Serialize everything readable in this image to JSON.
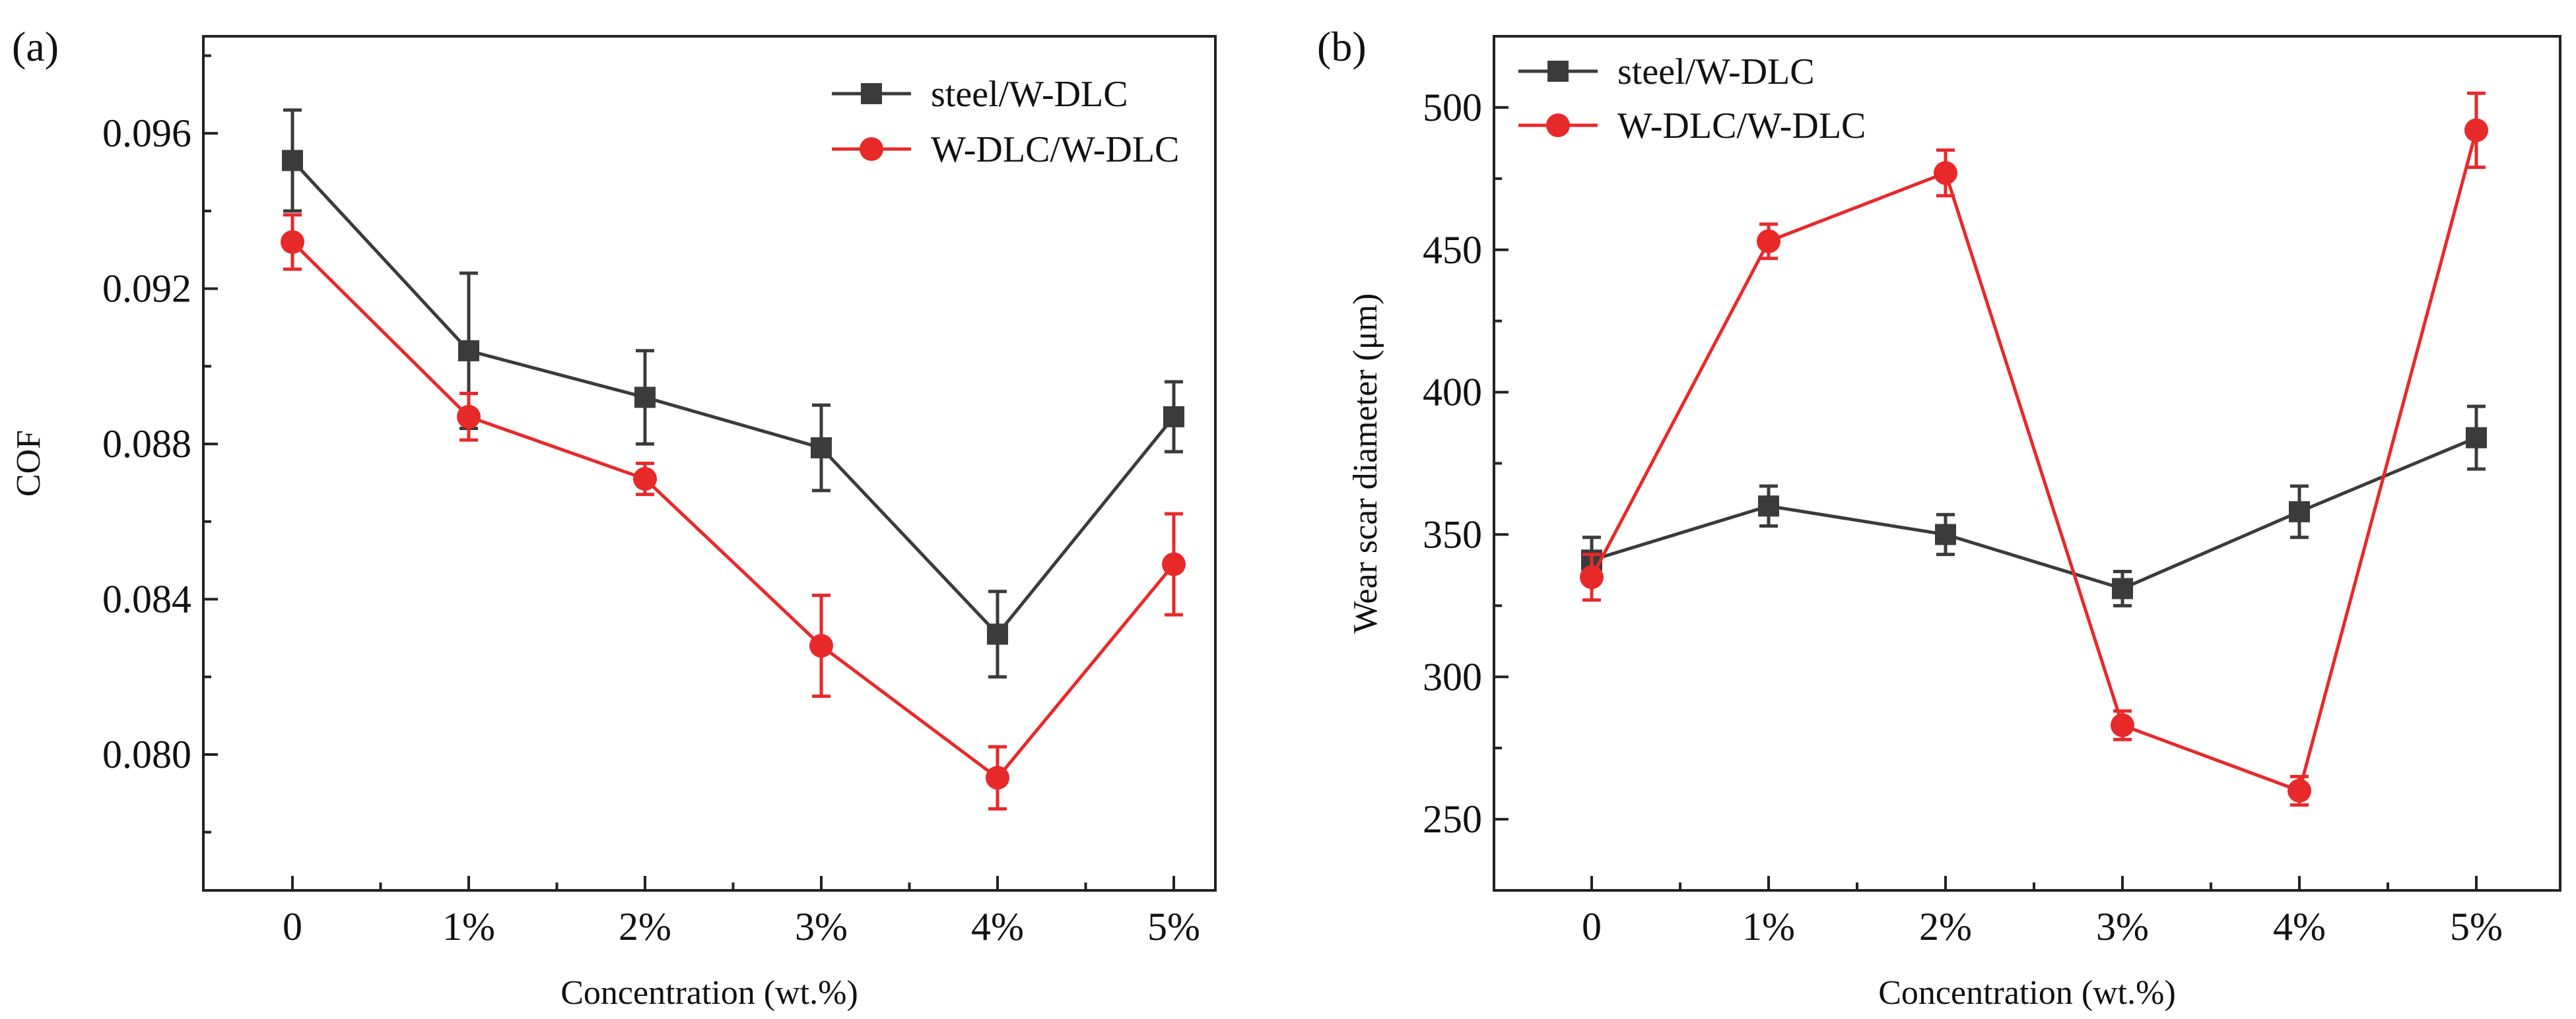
{
  "chart_data": [
    {
      "type": "line",
      "panel_label": "(a)",
      "xlabel": "Concentration (wt.%)",
      "ylabel": "COF",
      "categories": [
        "0",
        "1%",
        "2%",
        "3%",
        "4%",
        "5%"
      ],
      "ylim": [
        0.0765,
        0.0985
      ],
      "yticks": [
        0.08,
        0.084,
        0.088,
        0.092,
        0.096
      ],
      "ytick_labels": [
        "0.080",
        "0.084",
        "0.088",
        "0.092",
        "0.096"
      ],
      "legend_position": "top-right",
      "series": [
        {
          "name": "steel/W-DLC",
          "color": "#3b3b3b",
          "marker": "square",
          "values": [
            0.0953,
            0.0904,
            0.0892,
            0.0879,
            0.0831,
            0.0887
          ],
          "errors": [
            0.0013,
            0.002,
            0.0012,
            0.0011,
            0.0011,
            0.0009
          ]
        },
        {
          "name": "W-DLC/W-DLC",
          "color": "#e8292a",
          "marker": "circle",
          "values": [
            0.0932,
            0.0887,
            0.0871,
            0.0828,
            0.0794,
            0.0849
          ],
          "errors": [
            0.0007,
            0.0006,
            0.0004,
            0.0013,
            0.0008,
            0.0013
          ]
        }
      ]
    },
    {
      "type": "line",
      "panel_label": "(b)",
      "xlabel": "Concentration (wt.%)",
      "ylabel": "Wear scar diameter (μm)",
      "categories": [
        "0",
        "1%",
        "2%",
        "3%",
        "4%",
        "5%"
      ],
      "ylim": [
        225,
        525
      ],
      "yticks": [
        250,
        300,
        350,
        400,
        450,
        500
      ],
      "ytick_labels": [
        "250",
        "300",
        "350",
        "400",
        "450",
        "500"
      ],
      "legend_position": "top-left",
      "series": [
        {
          "name": "steel/W-DLC",
          "color": "#3b3b3b",
          "marker": "square",
          "values": [
            341,
            360,
            350,
            331,
            358,
            384
          ],
          "errors": [
            8,
            7,
            7,
            6,
            9,
            11
          ]
        },
        {
          "name": "W-DLC/W-DLC",
          "color": "#e8292a",
          "marker": "circle",
          "values": [
            335,
            453,
            477,
            283,
            260,
            492
          ],
          "errors": [
            8,
            6,
            8,
            5,
            5,
            13
          ]
        }
      ]
    }
  ]
}
